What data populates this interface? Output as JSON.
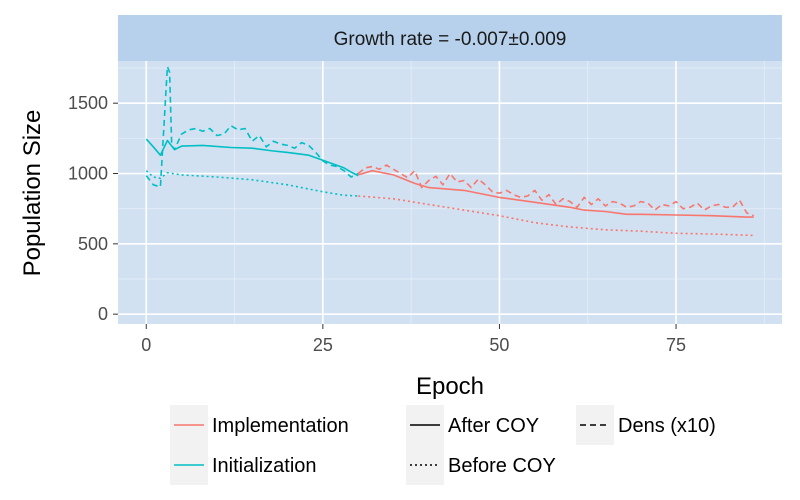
{
  "chart_data": {
    "type": "line",
    "title": "Growth rate = -0.007±0.009",
    "xlabel": "Epoch",
    "ylabel": "Population Size",
    "xlim": [
      -4,
      90
    ],
    "ylim": [
      -70,
      1800
    ],
    "x_ticks": [
      0,
      25,
      50,
      75
    ],
    "y_ticks": [
      0,
      500,
      1000,
      1500
    ],
    "grid": true,
    "legend_position": "bottom",
    "colors": {
      "panel": "#d1e1f1",
      "strip": "#b7d1ec",
      "grid_major": "#ffffff",
      "grid_minor": "#e6eef8",
      "Implementation": "#f8766d",
      "Initialization": "#00bfc4",
      "line": "#000000"
    },
    "legend": {
      "color": [
        "Implementation",
        "Initialization"
      ],
      "linetype": [
        "After COY",
        "Before COY",
        "Dens (x10)"
      ]
    },
    "series": [
      {
        "color_group": "Initialization",
        "linetype": "After COY",
        "x": [
          0,
          1,
          2,
          3,
          4,
          5,
          8,
          12,
          15,
          18,
          20,
          23,
          25,
          28,
          29,
          30
        ],
        "y": [
          1245,
          1190,
          1130,
          1235,
          1170,
          1195,
          1200,
          1185,
          1180,
          1160,
          1150,
          1130,
          1095,
          1040,
          1010,
          985
        ]
      },
      {
        "color_group": "Initialization",
        "linetype": "Before COY",
        "x": [
          0,
          1,
          2,
          3,
          5,
          10,
          15,
          20,
          25,
          28,
          30
        ],
        "y": [
          1020,
          975,
          965,
          1005,
          990,
          975,
          955,
          920,
          870,
          845,
          840
        ]
      },
      {
        "color_group": "Initialization",
        "linetype": "Dens (x10)",
        "x": [
          0,
          1,
          2,
          3,
          3.3,
          3.6,
          4,
          5,
          6,
          7,
          8,
          9,
          10,
          11,
          12,
          13,
          14,
          15,
          16,
          17,
          18,
          19,
          20,
          21,
          22,
          23,
          24,
          25,
          26,
          27,
          28,
          29,
          30
        ],
        "y": [
          985,
          920,
          905,
          1760,
          1720,
          1200,
          1170,
          1280,
          1310,
          1320,
          1300,
          1320,
          1270,
          1280,
          1340,
          1310,
          1320,
          1230,
          1270,
          1190,
          1230,
          1210,
          1200,
          1180,
          1220,
          1200,
          1150,
          1090,
          1060,
          1050,
          1020,
          975,
          1000
        ]
      },
      {
        "color_group": "Implementation",
        "linetype": "After COY",
        "x": [
          30,
          32,
          35,
          38,
          40,
          45,
          50,
          55,
          60,
          62,
          65,
          68,
          70,
          75,
          80,
          85,
          86
        ],
        "y": [
          990,
          1020,
          990,
          930,
          900,
          880,
          830,
          795,
          760,
          740,
          730,
          710,
          710,
          705,
          700,
          690,
          690
        ]
      },
      {
        "color_group": "Implementation",
        "linetype": "Before COY",
        "x": [
          30,
          35,
          40,
          45,
          50,
          55,
          60,
          65,
          70,
          75,
          80,
          86
        ],
        "y": [
          840,
          820,
          780,
          740,
          700,
          650,
          620,
          600,
          590,
          575,
          570,
          560
        ]
      },
      {
        "color_group": "Implementation",
        "linetype": "Dens (x10)",
        "x": [
          30,
          31,
          32,
          33,
          34,
          35,
          36,
          37,
          38,
          39,
          40,
          41,
          42,
          43,
          44,
          45,
          46,
          47,
          48,
          49,
          50,
          51,
          52,
          53,
          54,
          55,
          56,
          57,
          58,
          59,
          60,
          61,
          62,
          63,
          64,
          65,
          66,
          67,
          68,
          69,
          70,
          71,
          72,
          73,
          74,
          75,
          76,
          77,
          78,
          79,
          80,
          81,
          82,
          83,
          84,
          85,
          86
        ],
        "y": [
          1000,
          1040,
          1050,
          1030,
          1060,
          1030,
          1000,
          970,
          1020,
          900,
          950,
          980,
          920,
          1000,
          940,
          950,
          900,
          960,
          920,
          870,
          860,
          880,
          850,
          830,
          840,
          880,
          810,
          850,
          780,
          820,
          800,
          760,
          830,
          780,
          820,
          770,
          800,
          790,
          760,
          770,
          800,
          790,
          740,
          780,
          770,
          800,
          750,
          760,
          790,
          740,
          770,
          780,
          760,
          760,
          810,
          720,
          700
        ]
      }
    ]
  }
}
